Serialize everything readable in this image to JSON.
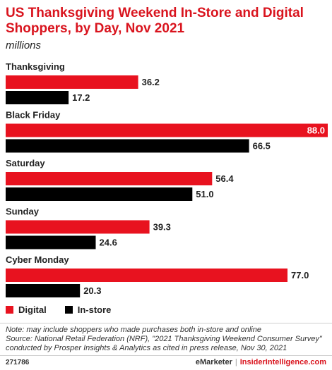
{
  "title": "US Thanksgiving Weekend In-Store and Digital Shoppers, by Day, Nov 2021",
  "subtitle": "millions",
  "colors": {
    "digital": "#e8121f",
    "instore": "#000000",
    "title": "#d9141e"
  },
  "chart_data": {
    "type": "bar",
    "orientation": "horizontal",
    "categories": [
      "Thanksgiving",
      "Black Friday",
      "Saturday",
      "Sunday",
      "Cyber Monday"
    ],
    "series": [
      {
        "name": "Digital",
        "values": [
          36.2,
          88.0,
          56.4,
          39.3,
          77.0
        ],
        "labels": [
          "36.2",
          "88.0",
          "56.4",
          "39.3",
          "77.0"
        ]
      },
      {
        "name": "In-store",
        "values": [
          17.2,
          66.5,
          51.0,
          24.6,
          20.3
        ],
        "labels": [
          "17.2",
          "66.5",
          "51.0",
          "24.6",
          "20.3"
        ]
      }
    ],
    "xlim": [
      0,
      88
    ],
    "grid": false,
    "legend_position": "bottom-left"
  },
  "legend": {
    "digital_label": "Digital",
    "instore_label": "In-store"
  },
  "note": {
    "line1": "Note: may include shoppers who made purchases both in-store and online",
    "line2": "Source: National Retail Federation (NRF), \"2021 Thanksgiving Weekend Consumer Survey\"",
    "line3": "conducted by Prosper Insights & Analytics as cited in press release, Nov 30, 2021"
  },
  "footer": {
    "chart_id": "271786",
    "brand1": "eMarketer",
    "separator": "|",
    "brand2": "InsiderIntelligence.com"
  }
}
